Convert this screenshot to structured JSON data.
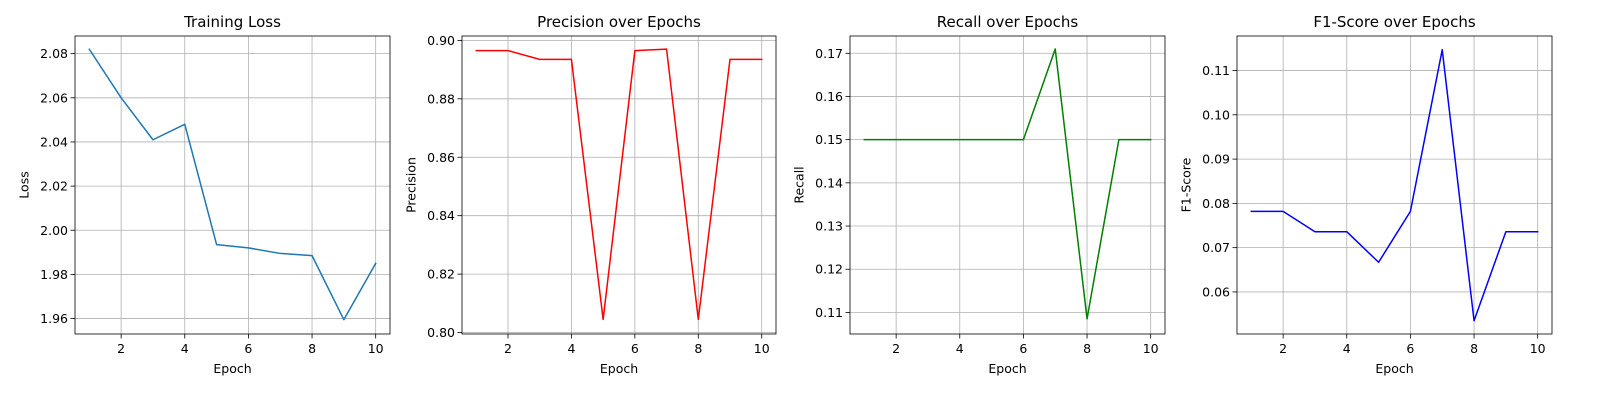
{
  "chart_data": [
    {
      "type": "line",
      "title": "Training Loss",
      "xlabel": "Epoch",
      "ylabel": "Loss",
      "x": [
        1,
        2,
        3,
        4,
        5,
        6,
        7,
        8,
        9,
        10
      ],
      "series": [
        {
          "name": "Loss",
          "values": [
            2.082,
            2.06,
            2.041,
            2.048,
            1.9935,
            1.992,
            1.9895,
            1.9885,
            1.9595,
            1.985
          ],
          "color": "#1f77b4"
        }
      ],
      "xlim": [
        0.55,
        10.45
      ],
      "ylim": [
        1.953,
        2.088
      ],
      "xticks": [
        "2",
        "4",
        "6",
        "8",
        "10"
      ],
      "xtick_values": [
        2,
        4,
        6,
        8,
        10
      ],
      "yticks": [
        "1.96",
        "1.98",
        "2.00",
        "2.02",
        "2.04",
        "2.06",
        "2.08"
      ],
      "ytick_values": [
        1.96,
        1.98,
        2.0,
        2.02,
        2.04,
        2.06,
        2.08
      ],
      "grid": true
    },
    {
      "type": "line",
      "title": "Precision over Epochs",
      "xlabel": "Epoch",
      "ylabel": "Precision",
      "x": [
        1,
        2,
        3,
        4,
        5,
        6,
        7,
        8,
        9,
        10
      ],
      "series": [
        {
          "name": "Precision",
          "values": [
            0.8965,
            0.8965,
            0.8935,
            0.8935,
            0.8045,
            0.8965,
            0.897,
            0.8045,
            0.8935,
            0.8935
          ],
          "color": "#ff0000"
        }
      ],
      "xlim": [
        0.55,
        10.45
      ],
      "ylim": [
        0.7995,
        0.9015
      ],
      "xticks": [
        "2",
        "4",
        "6",
        "8",
        "10"
      ],
      "xtick_values": [
        2,
        4,
        6,
        8,
        10
      ],
      "yticks": [
        "0.80",
        "0.82",
        "0.84",
        "0.86",
        "0.88",
        "0.90"
      ],
      "ytick_values": [
        0.8,
        0.82,
        0.84,
        0.86,
        0.88,
        0.9
      ],
      "grid": true
    },
    {
      "type": "line",
      "title": "Recall over Epochs",
      "xlabel": "Epoch",
      "ylabel": "Recall",
      "x": [
        1,
        2,
        3,
        4,
        5,
        6,
        7,
        8,
        9,
        10
      ],
      "series": [
        {
          "name": "Recall",
          "values": [
            0.15,
            0.15,
            0.15,
            0.15,
            0.15,
            0.15,
            0.171,
            0.1085,
            0.15,
            0.15
          ],
          "color": "#008000"
        }
      ],
      "xlim": [
        0.55,
        10.45
      ],
      "ylim": [
        0.105,
        0.174
      ],
      "xticks": [
        "2",
        "4",
        "6",
        "8",
        "10"
      ],
      "xtick_values": [
        2,
        4,
        6,
        8,
        10
      ],
      "yticks": [
        "0.11",
        "0.12",
        "0.13",
        "0.14",
        "0.15",
        "0.16",
        "0.17"
      ],
      "ytick_values": [
        0.11,
        0.12,
        0.13,
        0.14,
        0.15,
        0.16,
        0.17
      ],
      "grid": true
    },
    {
      "type": "line",
      "title": "F1-Score over Epochs",
      "xlabel": "Epoch",
      "ylabel": "F1-Score",
      "x": [
        1,
        2,
        3,
        4,
        5,
        6,
        7,
        8,
        9,
        10
      ],
      "series": [
        {
          "name": "F1-Score",
          "values": [
            0.0782,
            0.0782,
            0.0736,
            0.0736,
            0.0667,
            0.0782,
            0.1147,
            0.0535,
            0.0736,
            0.0736
          ],
          "color": "#0000ff"
        }
      ],
      "xlim": [
        0.55,
        10.45
      ],
      "ylim": [
        0.0505,
        0.1178
      ],
      "xticks": [
        "2",
        "4",
        "6",
        "8",
        "10"
      ],
      "xtick_values": [
        2,
        4,
        6,
        8,
        10
      ],
      "yticks": [
        "0.06",
        "0.07",
        "0.08",
        "0.09",
        "0.10",
        "0.11"
      ],
      "ytick_values": [
        0.06,
        0.07,
        0.08,
        0.09,
        0.1,
        0.11
      ],
      "grid": true
    }
  ]
}
